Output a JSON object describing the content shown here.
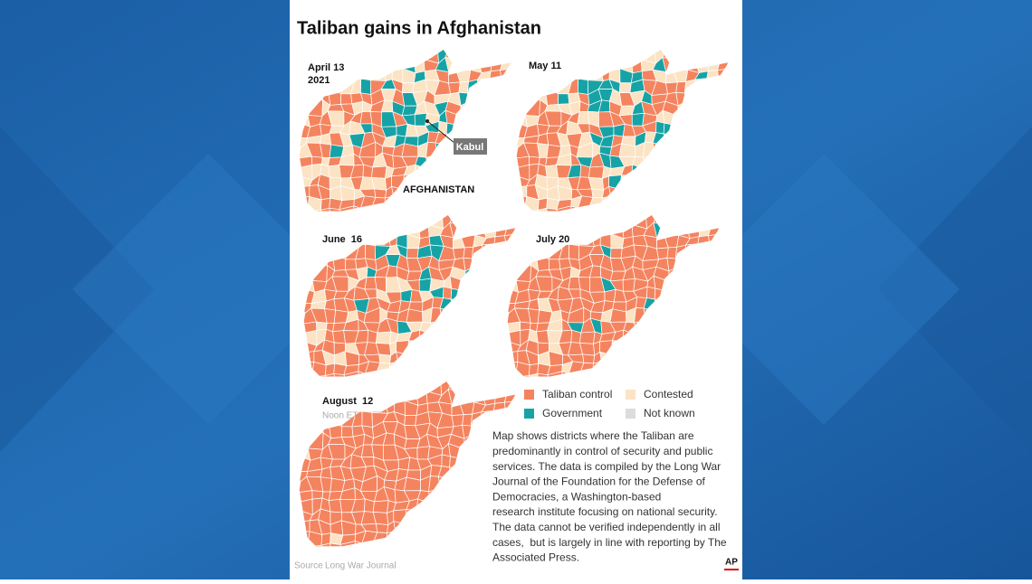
{
  "title": "Taliban gains in Afghanistan",
  "maps": [
    {
      "date": "April 13",
      "year": "2021"
    },
    {
      "date": "May 11"
    },
    {
      "date": "June  16"
    },
    {
      "date": "July 20"
    },
    {
      "date": "August  12",
      "note": "Noon ET"
    }
  ],
  "annotations": {
    "city": "Kabul",
    "country": "AFGHANISTAN"
  },
  "legend": [
    {
      "label": "Taliban control",
      "color": "#f4845f"
    },
    {
      "label": "Contested",
      "color": "#fbe3c4"
    },
    {
      "label": "Government",
      "color": "#17a3a5"
    },
    {
      "label": "Not known",
      "color": "#dcdcdc"
    }
  ],
  "description": [
    "Map shows districts where the Taliban are",
    "predominantly in control of security and public",
    "services. The data is compiled by the Long War",
    "Journal of the Foundation for the Defense of",
    "Democracies, a Washington-based",
    "research institute focusing on national security.",
    "The data cannot be verified independently in all",
    "cases,  but is largely in line with reporting by The",
    "Associated Press."
  ],
  "source": {
    "label": "Source",
    "name": "Long War Journal"
  },
  "logo": "AP"
}
